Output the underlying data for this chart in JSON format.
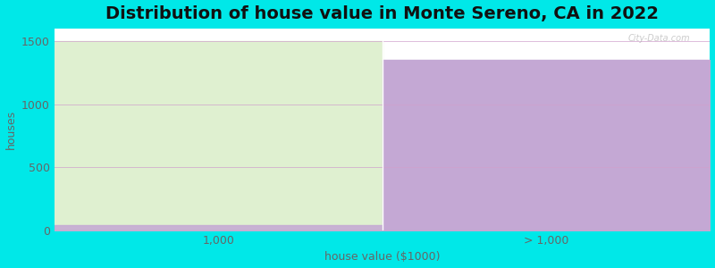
{
  "title": "Distribution of house value in Monte Sereno, CA in 2022",
  "xlabel": "house value ($1000)",
  "ylabel": "houses",
  "categories": [
    "1,000",
    "> 1,000"
  ],
  "values": [
    1500,
    1350
  ],
  "bar_colors": [
    "#dff0d0",
    "#c4a8d4"
  ],
  "ylim": [
    0,
    1600
  ],
  "yticks": [
    0,
    500,
    1000,
    1500
  ],
  "background_color": "#00e8e8",
  "plot_bg_color": "#ffffff",
  "title_fontsize": 14,
  "title_fontweight": "bold",
  "grid_color": "#d0a0cc",
  "watermark": "City-Data.com"
}
